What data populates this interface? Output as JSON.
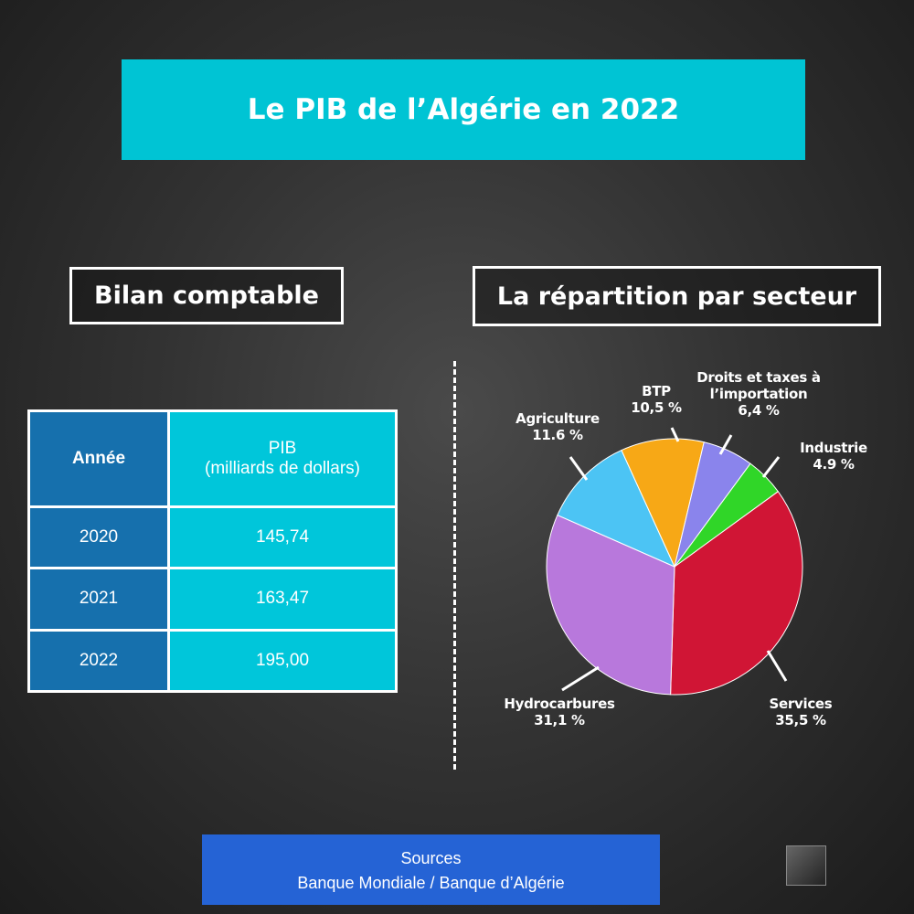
{
  "title": "Le PIB de l’Algérie en 2022",
  "table": {
    "title": "Bilan comptable",
    "header": [
      [
        "Année"
      ],
      [
        "PIB",
        "(milliards de dollars)"
      ]
    ],
    "rows": [
      [
        "2020",
        "145,74"
      ],
      [
        "2021",
        "163,47"
      ],
      [
        "2022",
        "195,00"
      ]
    ]
  },
  "chart_data": {
    "type": "pie",
    "title": "La répartition par secteur",
    "categories": [
      "Services",
      "Hydrocarbures",
      "Agriculture",
      "BTP",
      "Droits et taxes à l’importation",
      "Industrie"
    ],
    "values": [
      35.5,
      31.1,
      11.6,
      10.5,
      6.4,
      4.9
    ],
    "value_labels": [
      "35,5 %",
      "31,1 %",
      "11.6 %",
      "10,5 %",
      "6,4 %",
      "4.9 %"
    ],
    "colors": [
      "#d01535",
      "#b878dc",
      "#4cc4f4",
      "#f7a816",
      "#8a84ec",
      "#30d628"
    ]
  },
  "footer": {
    "title": "Sources",
    "text": "Banque Mondiale / Banque d’Algérie"
  }
}
